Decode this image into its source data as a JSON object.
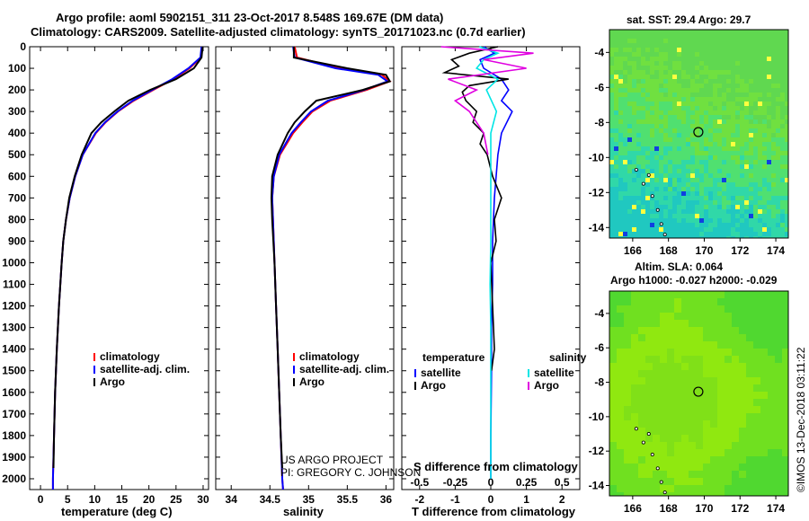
{
  "header": {
    "line1": "Argo profile: aoml 5902151_311 23-Oct-2017 8.548S 169.67E (DM data)",
    "line2": "Climatology: CARS2009. Satellite-adjusted climatology: synTS_20171023.nc (0.7d earlier)"
  },
  "colors": {
    "climatology": "#ff0000",
    "satellite": "#0000ff",
    "argo": "#000000",
    "sal_sat": "#00e5e5",
    "sal_argo": "#e000e0"
  },
  "depth_ticks": [
    0,
    100,
    200,
    300,
    400,
    500,
    600,
    700,
    800,
    900,
    1000,
    1100,
    1200,
    1300,
    1400,
    1500,
    1600,
    1700,
    1800,
    1900,
    2000
  ],
  "chart_data": [
    {
      "type": "line",
      "xlabel": "temperature (deg C)",
      "xlim": [
        -2,
        31
      ],
      "ylim": [
        2050,
        0
      ],
      "xticks": [
        0,
        5,
        10,
        15,
        20,
        25,
        30
      ],
      "legend": [
        "climatology",
        "satellite-adj. clim.",
        "Argo"
      ],
      "series": [
        {
          "name": "climatology",
          "depth": [
            0,
            50,
            100,
            150,
            200,
            250,
            300,
            350,
            400,
            500,
            600,
            700,
            800,
            900,
            1000,
            1200,
            1400,
            1600,
            1800,
            2000,
            2050
          ],
          "values": [
            29.8,
            29.6,
            27.5,
            24.5,
            20.8,
            17.2,
            14.3,
            12.0,
            10.2,
            7.8,
            6.4,
            5.4,
            4.7,
            4.2,
            3.9,
            3.4,
            3.0,
            2.7,
            2.5,
            2.3,
            2.3
          ]
        },
        {
          "name": "satellite-adj. clim.",
          "depth": [
            0,
            50,
            100,
            150,
            200,
            250,
            300,
            350,
            400,
            500,
            600,
            700,
            800,
            900,
            1000,
            1200,
            1400,
            1600,
            1800,
            2000,
            2050
          ],
          "values": [
            29.7,
            29.5,
            27.3,
            24.3,
            20.6,
            17.0,
            14.2,
            11.9,
            10.1,
            7.8,
            6.4,
            5.4,
            4.7,
            4.2,
            3.9,
            3.4,
            3.0,
            2.7,
            2.5,
            2.3,
            2.3
          ]
        },
        {
          "name": "Argo",
          "depth": [
            0,
            50,
            100,
            150,
            200,
            250,
            300,
            350,
            400,
            500,
            600,
            700,
            800,
            900,
            1000,
            1200,
            1400,
            1600,
            1800,
            1950
          ],
          "values": [
            29.9,
            29.7,
            28.3,
            25.0,
            20.2,
            16.2,
            13.6,
            11.2,
            9.4,
            7.6,
            6.3,
            5.3,
            4.7,
            4.2,
            3.9,
            3.4,
            3.0,
            2.7,
            2.5,
            2.4
          ]
        }
      ]
    },
    {
      "type": "line",
      "xlabel": "salinity",
      "xlim": [
        33.8,
        36.1
      ],
      "ylim": [
        2050,
        0
      ],
      "xticks": [
        34,
        34.5,
        35,
        35.5,
        36
      ],
      "legend": [
        "climatology",
        "satellite-adj. clim.",
        "Argo"
      ],
      "annotation": [
        "US ARGO PROJECT",
        "PI: GREGORY C. JOHNSON"
      ],
      "series": [
        {
          "name": "climatology",
          "depth": [
            0,
            50,
            100,
            130,
            160,
            200,
            250,
            300,
            350,
            400,
            500,
            600,
            700,
            800,
            1000,
            1200,
            1400,
            1600,
            1800,
            2000,
            2050
          ],
          "values": [
            34.82,
            34.85,
            35.4,
            35.95,
            36.05,
            35.75,
            35.28,
            35.05,
            34.92,
            34.8,
            34.63,
            34.55,
            34.53,
            34.54,
            34.56,
            34.58,
            34.6,
            34.62,
            34.64,
            34.66,
            34.67
          ]
        },
        {
          "name": "satellite-adj. clim.",
          "depth": [
            0,
            50,
            100,
            130,
            160,
            200,
            250,
            300,
            350,
            400,
            500,
            600,
            700,
            800,
            1000,
            1200,
            1400,
            1600,
            1800,
            2000,
            2050
          ],
          "values": [
            34.8,
            34.82,
            35.35,
            35.9,
            36.02,
            35.72,
            35.25,
            35.03,
            34.9,
            34.78,
            34.62,
            34.55,
            34.53,
            34.54,
            34.56,
            34.58,
            34.6,
            34.62,
            34.64,
            34.66,
            34.67
          ]
        },
        {
          "name": "Argo",
          "depth": [
            0,
            50,
            100,
            130,
            160,
            200,
            250,
            300,
            350,
            400,
            500,
            600,
            700,
            800,
            1000,
            1200,
            1400,
            1600,
            1800,
            1950
          ],
          "values": [
            34.81,
            34.81,
            35.5,
            36.0,
            36.05,
            35.7,
            35.1,
            34.95,
            34.82,
            34.73,
            34.6,
            34.53,
            34.52,
            34.53,
            34.56,
            34.58,
            34.6,
            34.62,
            34.64,
            34.66
          ]
        }
      ]
    },
    {
      "type": "line",
      "xlabel": "T difference from climatology",
      "xlabel_top": "S difference from climatology",
      "xlim": [
        -2.5,
        2.5
      ],
      "xlim_top": [
        -0.625,
        0.625
      ],
      "ylim": [
        2050,
        0
      ],
      "xticks": [
        -2,
        -1,
        0,
        1,
        2
      ],
      "xticks_top": [
        -0.5,
        -0.25,
        0,
        0.25,
        0.5
      ],
      "legend_left_title": "temperature",
      "legend_right_title": "salinity",
      "legend_left": [
        "satellite",
        "Argo"
      ],
      "legend_right": [
        "satellite",
        "Argo"
      ],
      "series": [
        {
          "name": "temperature satellite",
          "axis": "T",
          "depth": [
            0,
            30,
            60,
            100,
            150,
            200,
            250,
            300,
            400,
            500,
            700,
            900,
            1100,
            1300,
            1500,
            1800,
            2000
          ],
          "values": [
            -0.2,
            0.1,
            -0.3,
            -0.2,
            0.3,
            0.5,
            0.3,
            0.6,
            0.3,
            0.2,
            0.1,
            0.05,
            0.05,
            0.02,
            0.02,
            0.0,
            0.0
          ]
        },
        {
          "name": "temperature Argo",
          "axis": "T",
          "depth": [
            0,
            30,
            60,
            90,
            120,
            150,
            180,
            210,
            250,
            300,
            350,
            400,
            450,
            500,
            600,
            700,
            800,
            900,
            1000,
            1200,
            1400,
            1500
          ],
          "values": [
            0.2,
            -0.6,
            -1.1,
            -0.9,
            -1.3,
            0.5,
            -0.6,
            -0.8,
            -0.7,
            -0.4,
            -0.5,
            -0.2,
            -0.3,
            -0.1,
            0.05,
            0.3,
            0.1,
            0.15,
            0.0,
            0.05,
            0.1,
            0.02
          ]
        },
        {
          "name": "salinity satellite",
          "axis": "S",
          "depth": [
            0,
            30,
            60,
            100,
            150,
            200,
            300,
            400,
            500,
            700,
            900,
            1100,
            1300,
            1500,
            1800,
            2000
          ],
          "values": [
            -0.08,
            0.05,
            -0.05,
            -0.1,
            0.05,
            -0.03,
            0.04,
            0.0,
            0.0,
            0.0,
            0.0,
            -0.005,
            0.0,
            0.0,
            0.0,
            0.0
          ]
        },
        {
          "name": "salinity Argo",
          "axis": "S",
          "depth": [
            0,
            30,
            60,
            100,
            150,
            200,
            250,
            300,
            400,
            500
          ],
          "values": [
            -0.35,
            0.3,
            -0.05,
            0.25,
            -0.3,
            -0.1,
            -0.25,
            -0.15,
            -0.05,
            -0.02
          ]
        }
      ]
    },
    {
      "type": "heatmap",
      "title": "sat. SST: 29.4 Argo: 29.7",
      "xlim": [
        164.7,
        174.7
      ],
      "ylim": [
        -14.6,
        -2.7
      ],
      "xticks": [
        166,
        168,
        170,
        172,
        174
      ],
      "yticks": [
        -4,
        -6,
        -8,
        -10,
        -12,
        -14
      ],
      "argo_position": [
        169.67,
        -8.548
      ]
    },
    {
      "type": "heatmap",
      "title": "Altim. SLA: 0.064",
      "subtitle": "Argo h1000: -0.027 h2000: -0.029",
      "xlim": [
        164.7,
        174.7
      ],
      "ylim": [
        -14.6,
        -2.7
      ],
      "xticks": [
        166,
        168,
        170,
        172,
        174
      ],
      "yticks": [
        -4,
        -6,
        -8,
        -10,
        -12,
        -14
      ],
      "argo_position": [
        169.67,
        -8.548
      ]
    }
  ],
  "credit": "©IMOS 13-Dec-2018 03:11:22"
}
